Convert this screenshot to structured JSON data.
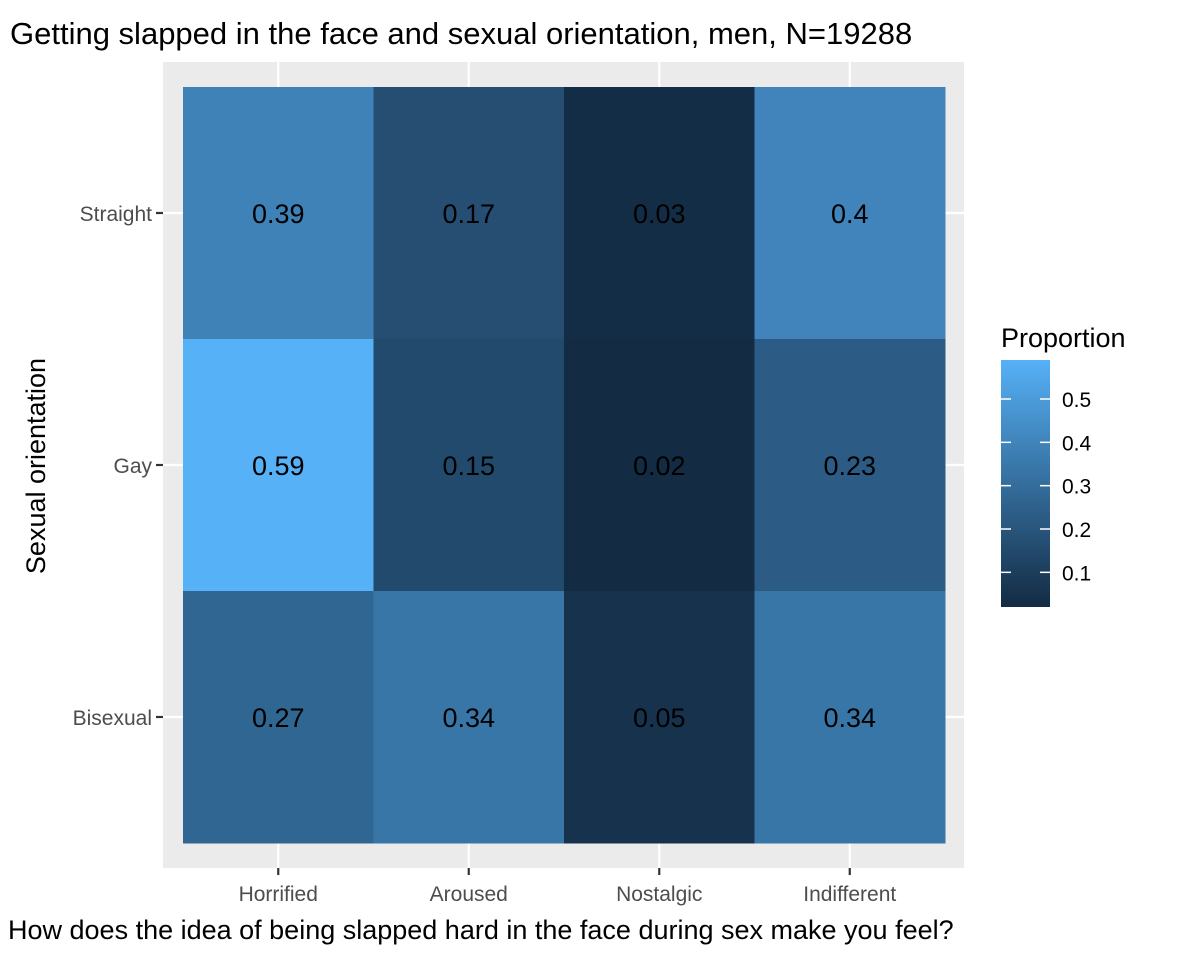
{
  "chart_data": {
    "type": "heatmap",
    "title": "Getting slapped in the face and sexual orientation, men, N=19288",
    "xlabel": "How does the idea of being slapped hard in the face during sex make you feel?",
    "ylabel": "Sexual orientation",
    "x_categories": [
      "Horrified",
      "Aroused",
      "Nostalgic",
      "Indifferent"
    ],
    "y_categories": [
      "Straight",
      "Gay",
      "Bisexual"
    ],
    "values": [
      [
        0.39,
        0.17,
        0.03,
        0.4
      ],
      [
        0.59,
        0.15,
        0.02,
        0.23
      ],
      [
        0.27,
        0.34,
        0.05,
        0.34
      ]
    ],
    "value_labels": [
      [
        "0.39",
        "0.17",
        "0.03",
        "0.4"
      ],
      [
        "0.59",
        "0.15",
        "0.02",
        "0.23"
      ],
      [
        "0.27",
        "0.34",
        "0.05",
        "0.34"
      ]
    ],
    "legend": {
      "title": "Proportion",
      "placement": "right",
      "ticks": [
        0.1,
        0.2,
        0.3,
        0.4,
        0.5
      ],
      "tick_labels": [
        "0.1",
        "0.2",
        "0.3",
        "0.4",
        "0.5"
      ],
      "range": [
        0.02,
        0.59
      ]
    },
    "color_scale": {
      "low": "#132B43",
      "high": "#56B1F7"
    },
    "panel_background": "#EBEBEB",
    "grid_color": "#FFFFFF"
  }
}
